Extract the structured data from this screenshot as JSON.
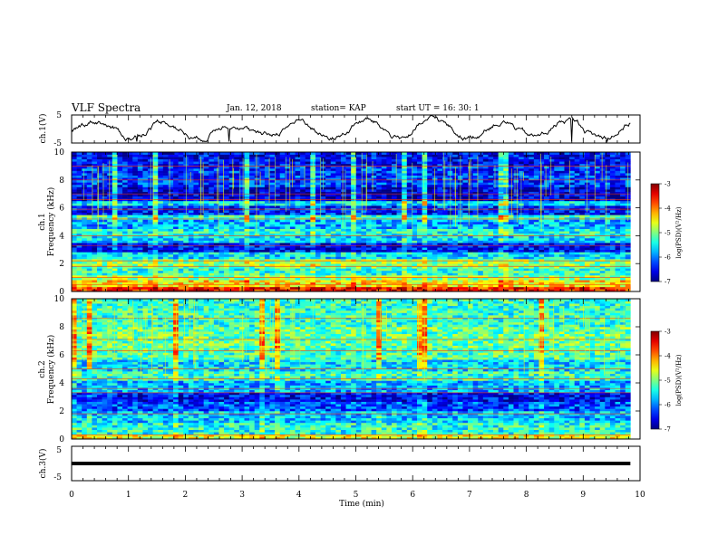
{
  "header": {
    "title": "VLF Spectra",
    "date": "Jan. 12, 2018",
    "station": "station= KAP",
    "start": "start UT =  16: 30: 1"
  },
  "chart_data": [
    {
      "type": "line",
      "panel": "ch1-waveform",
      "ylabel": "ch.1(V)",
      "ylim": [
        -5,
        5
      ],
      "yticks": [
        "5",
        "-5"
      ],
      "x_range_min": [
        0,
        9.83
      ],
      "color": "#000000",
      "description_values": {
        "baseline_V": 0.0,
        "approx_amplitude_V": 2.5
      }
    },
    {
      "type": "heatmap",
      "panel": "ch1-spectrogram",
      "ylabel": "ch.1\nFrequency (kHz)",
      "ylim": [
        0,
        10
      ],
      "yticks": [
        "0",
        "2",
        "4",
        "6",
        "8",
        "10"
      ],
      "colorbar": {
        "label": "log(PSD)(V²/Hz)",
        "range": [
          -7,
          -3
        ],
        "ticks": [
          "-3",
          "-4",
          "-5",
          "-6",
          "-7"
        ]
      },
      "bands_kHz_level": [
        [
          0.0,
          0.3,
          -3.6
        ],
        [
          0.3,
          0.8,
          -4.4
        ],
        [
          0.8,
          1.2,
          -4.9
        ],
        [
          1.2,
          1.6,
          -5.3
        ],
        [
          1.6,
          1.9,
          -5.1
        ],
        [
          1.9,
          2.4,
          -4.9
        ],
        [
          2.4,
          2.8,
          -5.6
        ],
        [
          2.8,
          3.5,
          -6.5
        ],
        [
          3.5,
          4.0,
          -5.6
        ],
        [
          4.0,
          4.5,
          -5.4
        ],
        [
          4.5,
          5.2,
          -5.8
        ],
        [
          5.2,
          5.5,
          -5.3
        ],
        [
          5.5,
          6.2,
          -6.4
        ],
        [
          6.2,
          6.5,
          -5.6
        ],
        [
          6.5,
          7.5,
          -6.7
        ],
        [
          7.5,
          9.0,
          -6.3
        ],
        [
          9.0,
          10.0,
          -6.5
        ]
      ],
      "lines_kHz": [
        0.5,
        1.0,
        1.8,
        2.2,
        3.3,
        4.0,
        5.2,
        5.9,
        6.6,
        7.0,
        8.0,
        9.0
      ]
    },
    {
      "type": "heatmap",
      "panel": "ch2-spectrogram",
      "ylabel": "ch.2\nFrequency (kHz)",
      "ylim": [
        0,
        10
      ],
      "yticks": [
        "0",
        "2",
        "4",
        "6",
        "8",
        "10"
      ],
      "colorbar": {
        "label": "log(PSD)(V²/Hz)",
        "range": [
          -7,
          -3
        ],
        "ticks": [
          "-3",
          "-4",
          "-5",
          "-6",
          "-7"
        ]
      },
      "bands_kHz_level": [
        [
          0.0,
          0.4,
          -4.6
        ],
        [
          0.4,
          1.2,
          -5.4
        ],
        [
          1.2,
          2.0,
          -5.7
        ],
        [
          2.0,
          2.6,
          -6.2
        ],
        [
          2.6,
          3.4,
          -6.5
        ],
        [
          3.4,
          4.2,
          -5.8
        ],
        [
          4.2,
          4.8,
          -5.3
        ],
        [
          4.8,
          5.6,
          -5.6
        ],
        [
          5.6,
          6.5,
          -5.2
        ],
        [
          6.5,
          8.0,
          -5.1
        ],
        [
          8.0,
          10.0,
          -5.3
        ]
      ],
      "lines_kHz": [
        0.3,
        1.8,
        3.3,
        3.6,
        4.3,
        5.0,
        6.3,
        7.1,
        8.6
      ]
    },
    {
      "type": "line",
      "panel": "ch3-waveform",
      "ylabel": "ch.3(V)",
      "ylim": [
        -5,
        5
      ],
      "yticks": [
        "5",
        "-5"
      ],
      "x_range_min": [
        0,
        9.83
      ],
      "value_V": 0.0,
      "color": "#000000"
    }
  ],
  "xaxis": {
    "label": "Time (min)",
    "range": [
      0,
      10
    ],
    "ticks": [
      "0",
      "1",
      "2",
      "3",
      "4",
      "5",
      "6",
      "7",
      "8",
      "9",
      "10"
    ]
  }
}
